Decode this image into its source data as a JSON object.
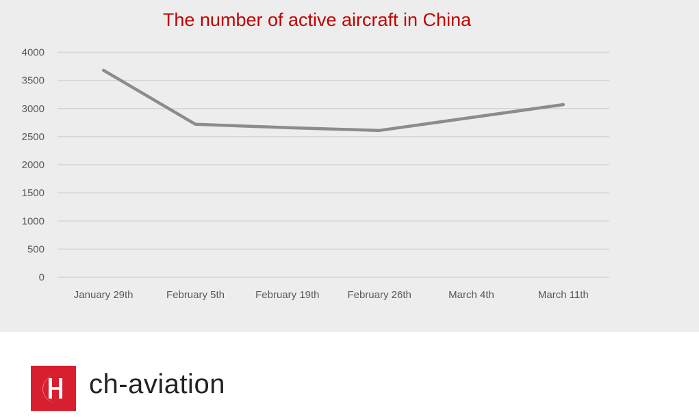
{
  "chart_data": {
    "type": "line",
    "title": "The number of active aircraft in China",
    "categories": [
      "January 29th",
      "February 5th",
      "February 19th",
      "February 26th",
      "March 4th",
      "March 11th"
    ],
    "series": [
      {
        "values": [
          3680,
          2720,
          2660,
          2610,
          2840,
          3070
        ],
        "color": "#8c8c8c"
      }
    ],
    "yticks": [
      0,
      500,
      1000,
      1500,
      2000,
      2500,
      3000,
      3500,
      4000
    ],
    "ylim": [
      0,
      4000
    ],
    "grid": true,
    "title_color": "#c00000"
  },
  "brand": {
    "name": "ch-aviation",
    "logo_letters": "CH",
    "color": "#d71f30"
  }
}
